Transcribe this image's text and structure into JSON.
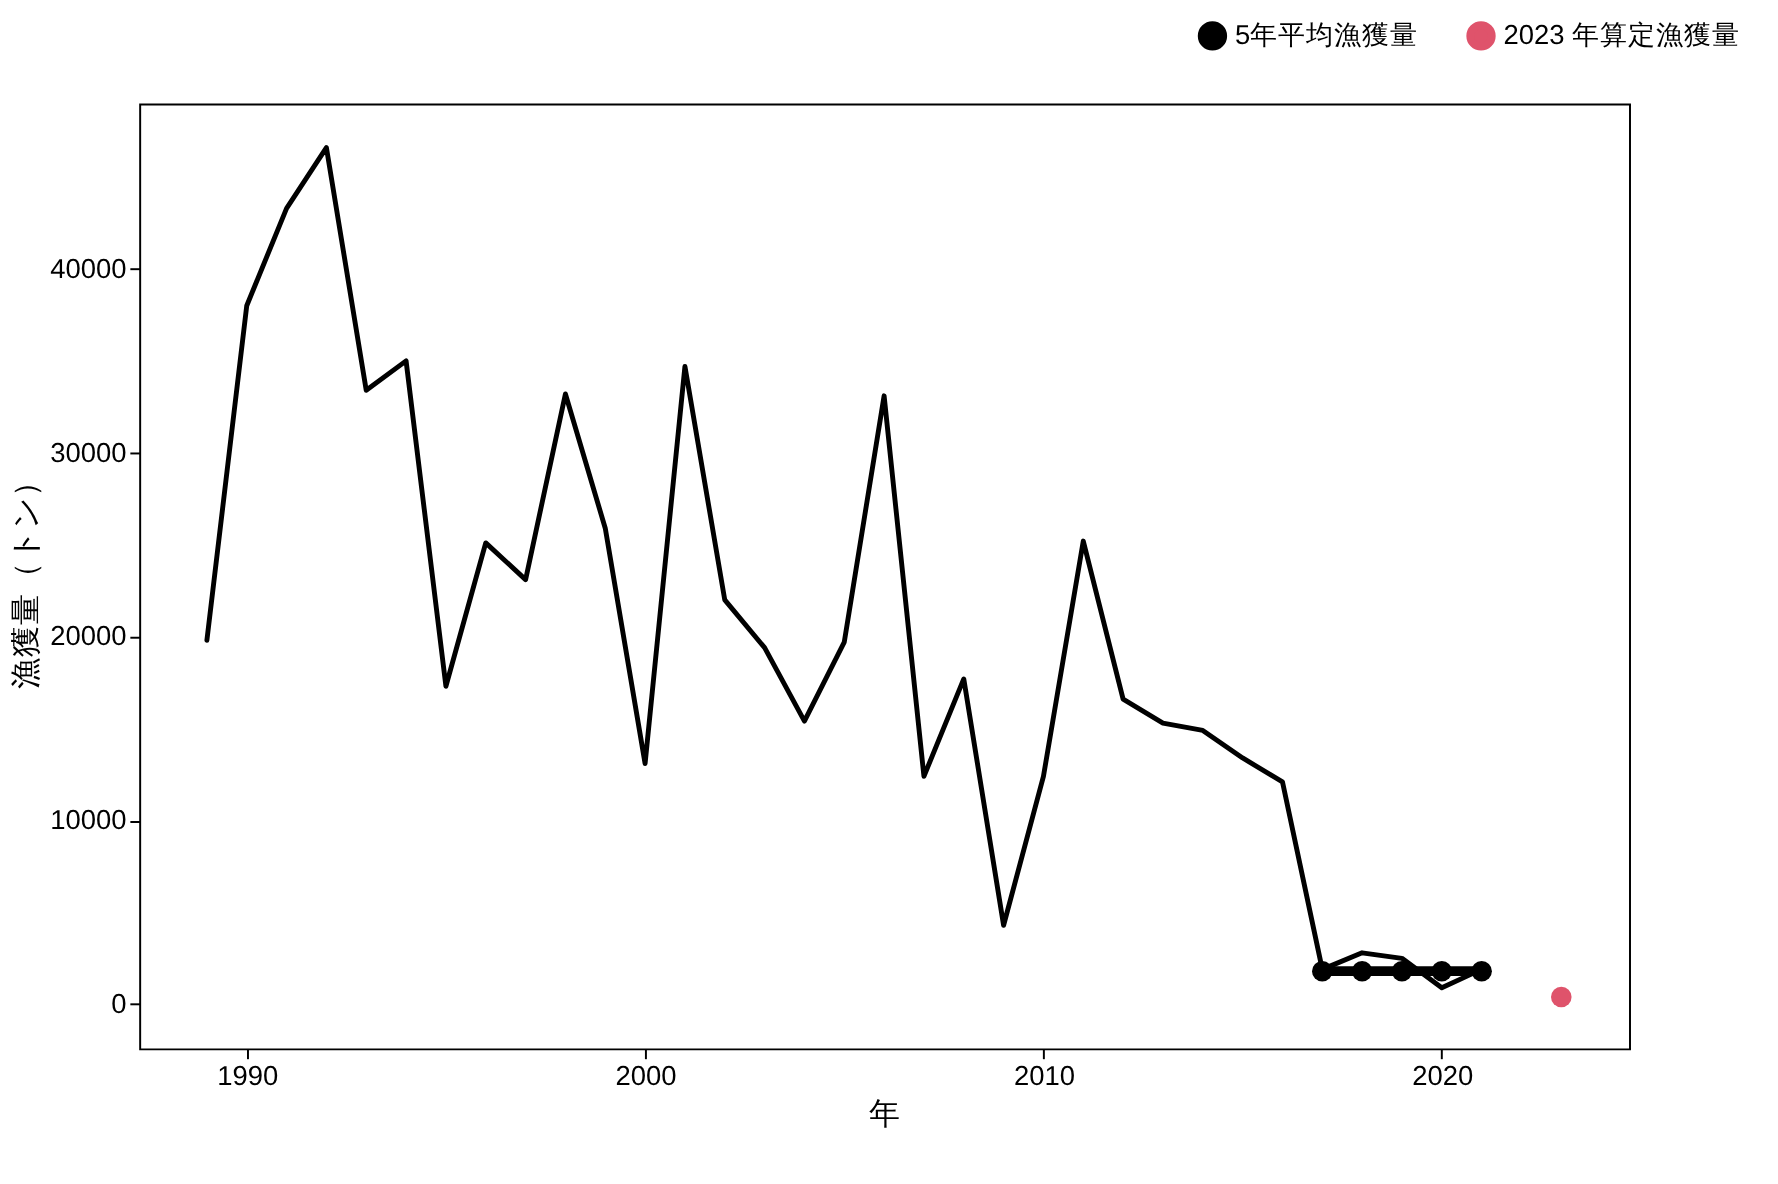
{
  "chart_data": {
    "type": "line",
    "xlabel": "年",
    "ylabel": "漁獲量（トン）",
    "xlim": [
      1987.3,
      2024.7
    ],
    "ylim": [
      -2400,
      49000
    ],
    "xticks": [
      1990,
      2000,
      2010,
      2020
    ],
    "yticks": [
      0,
      10000,
      20000,
      30000,
      40000
    ],
    "grid": false,
    "legend": "top right",
    "line_style": "solid",
    "series": [
      {
        "color": "#000000",
        "marker": "none",
        "x": [
          1989,
          1990,
          1991,
          1992,
          1993,
          1994,
          1995,
          1996,
          1997,
          1998,
          1999,
          2000,
          2001,
          2002,
          2003,
          2004,
          2005,
          2006,
          2007,
          2008,
          2009,
          2010,
          2011,
          2012,
          2013,
          2014,
          2015,
          2016,
          2017,
          2018,
          2019,
          2020,
          2021
        ],
        "values": [
          19800,
          38000,
          43300,
          46600,
          33400,
          35000,
          17300,
          25100,
          23100,
          33200,
          25900,
          13100,
          34700,
          22000,
          19400,
          15400,
          19700,
          33100,
          12400,
          17700,
          4300,
          12400,
          25200,
          16600,
          15300,
          14900,
          13400,
          12100,
          1900,
          2800,
          2500,
          900,
          1900
        ]
      },
      {
        "type": "line",
        "name": "5年平均漁獲量",
        "color": "#000000",
        "marker": "circle",
        "x": [
          2017,
          2018,
          2019,
          2020,
          2021
        ],
        "values": [
          1800,
          1800,
          1800,
          1800,
          1800
        ]
      },
      {
        "type": "scatter",
        "name": "2023 年算定漁獲量",
        "color": "#df536b",
        "marker": "circle",
        "x": [
          2023
        ],
        "values": [
          400
        ]
      }
    ]
  }
}
